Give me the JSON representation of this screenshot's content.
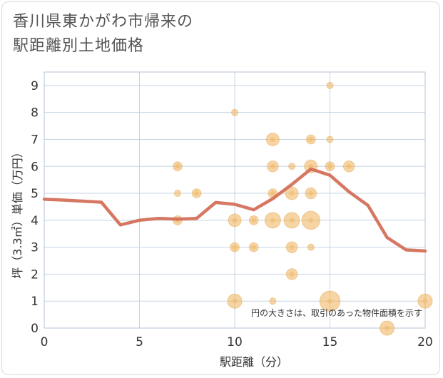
{
  "title": {
    "line1": "香川県東かがわ市帰来の",
    "line2": "駅距離別土地価格"
  },
  "chart_data": {
    "type": "scatter",
    "title": "香川県東かがわ市帰来の駅距離別土地価格",
    "xlabel": "駅距離（分）",
    "ylabel": "坪（3.3㎡）単価（万円）",
    "xlim": [
      0,
      20
    ],
    "ylim": [
      0,
      9.5
    ],
    "xticks": [
      0,
      5,
      10,
      15,
      20
    ],
    "yticks": [
      0,
      1,
      2,
      3,
      4,
      5,
      6,
      7,
      8,
      9
    ],
    "grid": true,
    "annotation": "円の大きさは、取引のあった物件面積を示す",
    "colors": {
      "bubble": "#f0b866",
      "bubble_edge": "#e5a955",
      "line": "#d4705a",
      "grid": "#c8d4e3",
      "frame": "#b7c3d3",
      "axis_text": "#333333"
    },
    "points": [
      {
        "x": 7,
        "y": 6,
        "size": 2
      },
      {
        "x": 7,
        "y": 5,
        "size": 1
      },
      {
        "x": 7,
        "y": 4,
        "size": 2
      },
      {
        "x": 8,
        "y": 5,
        "size": 2
      },
      {
        "x": 10,
        "y": 8,
        "size": 1
      },
      {
        "x": 10,
        "y": 4,
        "size": 4
      },
      {
        "x": 10,
        "y": 3,
        "size": 2
      },
      {
        "x": 10,
        "y": 1,
        "size": 5
      },
      {
        "x": 11,
        "y": 4,
        "size": 2
      },
      {
        "x": 11,
        "y": 3,
        "size": 2
      },
      {
        "x": 12,
        "y": 7,
        "size": 4
      },
      {
        "x": 12,
        "y": 6,
        "size": 3
      },
      {
        "x": 12,
        "y": 5,
        "size": 2
      },
      {
        "x": 12,
        "y": 4,
        "size": 6
      },
      {
        "x": 12,
        "y": 1,
        "size": 1
      },
      {
        "x": 13,
        "y": 6,
        "size": 1
      },
      {
        "x": 13,
        "y": 5,
        "size": 4
      },
      {
        "x": 13,
        "y": 4,
        "size": 6
      },
      {
        "x": 13,
        "y": 3,
        "size": 3
      },
      {
        "x": 13,
        "y": 2,
        "size": 3
      },
      {
        "x": 14,
        "y": 7,
        "size": 2
      },
      {
        "x": 14,
        "y": 6,
        "size": 4
      },
      {
        "x": 14,
        "y": 5,
        "size": 3
      },
      {
        "x": 14,
        "y": 4,
        "size": 8
      },
      {
        "x": 14,
        "y": 3,
        "size": 1
      },
      {
        "x": 15,
        "y": 9,
        "size": 1
      },
      {
        "x": 15,
        "y": 7,
        "size": 1
      },
      {
        "x": 15,
        "y": 6,
        "size": 2
      },
      {
        "x": 15,
        "y": 1,
        "size": 10
      },
      {
        "x": 16,
        "y": 6,
        "size": 3
      },
      {
        "x": 18,
        "y": 0,
        "size": 5
      },
      {
        "x": 20,
        "y": 1,
        "size": 5
      }
    ],
    "trend": {
      "x": [
        0,
        1,
        2,
        3,
        4,
        5,
        6,
        7,
        8,
        9,
        10,
        11,
        12,
        13,
        14,
        15,
        16,
        17,
        18,
        19,
        20
      ],
      "y": [
        4.78,
        4.75,
        4.71,
        4.67,
        3.83,
        4.0,
        4.07,
        4.04,
        4.07,
        4.66,
        4.59,
        4.39,
        4.8,
        5.33,
        5.9,
        5.67,
        5.06,
        4.55,
        3.36,
        2.9,
        2.86
      ]
    }
  }
}
